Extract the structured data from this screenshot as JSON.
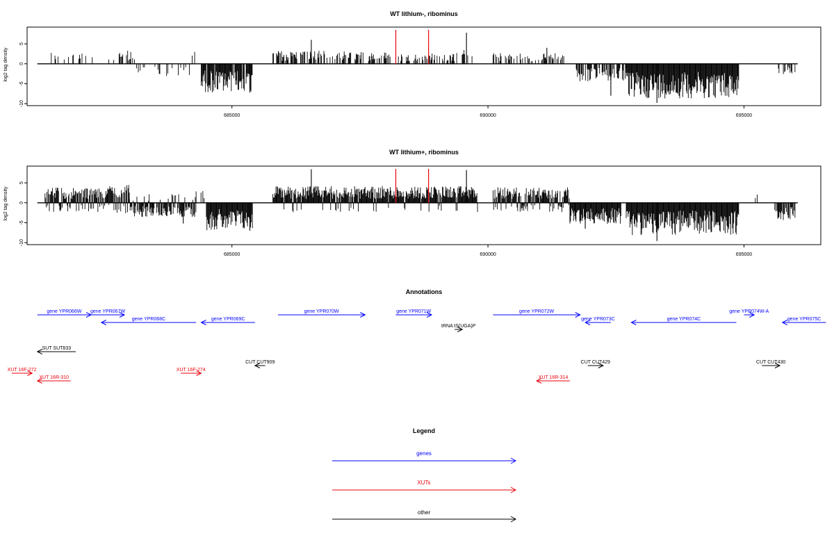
{
  "colors": {
    "axis": "#000000",
    "bar": "#000000",
    "marker": "#e8000b",
    "gene": "#0000ff",
    "xut": "#e8000b",
    "other": "#000000"
  },
  "chart_data": [
    {
      "type": "bar",
      "title": "WT lithium-, ribominus",
      "ylabel": "log2 tag density",
      "xlim": [
        681000,
        696500
      ],
      "ylim": [
        -10.5,
        9.2
      ],
      "xticks": [
        685000,
        690000,
        695000
      ],
      "yticks": [
        5,
        0,
        -5,
        -10
      ],
      "xtick_labels": [
        "685000",
        "690000",
        "695000"
      ],
      "ytick_labels": [
        "5",
        "0",
        "-5",
        "-10"
      ],
      "baseline": {
        "from": 681200,
        "to": 696050
      },
      "markers": [
        688200,
        688840
      ],
      "marker_height": 8.5,
      "segments": [
        {
          "from": 681400,
          "to": 682200,
          "mean": 2.0,
          "density": 0.25
        },
        {
          "from": 682200,
          "to": 682700,
          "mean": 1.5,
          "density": 0.06
        },
        {
          "from": 682700,
          "to": 683100,
          "mean": 2.4,
          "density": 0.45
        },
        {
          "from": 683100,
          "to": 683700,
          "mean": -1.8,
          "density": 0.3
        },
        {
          "from": 683700,
          "to": 684200,
          "mean": -2.2,
          "density": 0.22
        },
        {
          "from": 684200,
          "to": 684400,
          "mean": 2.0,
          "density": 0.12
        },
        {
          "from": 684400,
          "to": 685400,
          "mean": -4.8,
          "density": 0.9
        },
        {
          "from": 685800,
          "to": 687200,
          "mean": 2.2,
          "density": 0.55
        },
        {
          "from": 687200,
          "to": 688100,
          "mean": 2.0,
          "density": 0.5
        },
        {
          "from": 688250,
          "to": 689400,
          "mean": 1.8,
          "density": 0.4
        },
        {
          "from": 689400,
          "to": 689700,
          "mean": 2.4,
          "density": 0.35
        },
        {
          "from": 690100,
          "to": 691500,
          "mean": 1.8,
          "density": 0.45
        },
        {
          "from": 691700,
          "to": 692700,
          "mean": -3.0,
          "density": 0.65
        },
        {
          "from": 692700,
          "to": 694900,
          "mean": -5.8,
          "density": 1.0
        },
        {
          "from": 695600,
          "to": 696000,
          "mean": -1.8,
          "density": 0.3
        }
      ],
      "spikes": [
        {
          "x": 686550,
          "y": 6.0
        },
        {
          "x": 689580,
          "y": 7.8
        },
        {
          "x": 692400,
          "y": -8.0
        },
        {
          "x": 693300,
          "y": -9.8
        },
        {
          "x": 691150,
          "y": 4.0
        },
        {
          "x": 685350,
          "y": -7.2
        }
      ]
    },
    {
      "type": "bar",
      "title": "WT lithium+, ribominus",
      "ylabel": "log2 tag density",
      "xlim": [
        681000,
        696500
      ],
      "ylim": [
        -10.5,
        9.2
      ],
      "xticks": [
        685000,
        690000,
        695000
      ],
      "yticks": [
        5,
        0,
        -5,
        -10
      ],
      "xtick_labels": [
        "685000",
        "690000",
        "695000"
      ],
      "ytick_labels": [
        "5",
        "0",
        "-5",
        "-10"
      ],
      "baseline": {
        "from": 681200,
        "to": 696050
      },
      "markers": [
        688200,
        688840
      ],
      "marker_height": 8.5,
      "segments": [
        {
          "from": 681350,
          "to": 682600,
          "mean": 2.6,
          "density": 1.0,
          "mixed": 0.25
        },
        {
          "from": 682600,
          "to": 683000,
          "mean": 3.0,
          "density": 0.9,
          "mixed": 0.2
        },
        {
          "from": 683000,
          "to": 684300,
          "mean": -2.4,
          "density": 0.9,
          "mixed": 0.15
        },
        {
          "from": 684300,
          "to": 684500,
          "mean": 2.2,
          "density": 0.3
        },
        {
          "from": 684500,
          "to": 685400,
          "mean": -4.6,
          "density": 1.0
        },
        {
          "from": 685800,
          "to": 689800,
          "mean": 2.8,
          "density": 1.0,
          "mixed": 0.1
        },
        {
          "from": 690100,
          "to": 691600,
          "mean": 2.6,
          "density": 1.0,
          "mixed": 0.2
        },
        {
          "from": 691600,
          "to": 692600,
          "mean": -3.6,
          "density": 1.0
        },
        {
          "from": 692700,
          "to": 694900,
          "mean": -5.4,
          "density": 1.0
        },
        {
          "from": 695150,
          "to": 695300,
          "mean": 2.6,
          "density": 0.15
        },
        {
          "from": 695600,
          "to": 696000,
          "mean": -3.0,
          "density": 0.8
        }
      ],
      "spikes": [
        {
          "x": 686550,
          "y": 8.4
        },
        {
          "x": 689580,
          "y": 8.2
        },
        {
          "x": 691900,
          "y": -6.5
        },
        {
          "x": 693300,
          "y": -9.6
        },
        {
          "x": 685350,
          "y": -7.0
        },
        {
          "x": 684050,
          "y": -5.2
        }
      ]
    }
  ],
  "annotations": {
    "title": "Annotations",
    "xlim": [
      681000,
      696500
    ],
    "tracks": [
      {
        "label": "gene YPR066W",
        "from": 681200,
        "to": 682250,
        "strand": "+",
        "row": 0,
        "kind": "gene"
      },
      {
        "label": "gene YPR067W",
        "from": 682250,
        "to": 682900,
        "strand": "+",
        "row": 0,
        "kind": "gene"
      },
      {
        "label": "gene YPR068C",
        "from": 682450,
        "to": 684300,
        "strand": "-",
        "row": 1,
        "kind": "gene"
      },
      {
        "label": "gene YPR069C",
        "from": 684400,
        "to": 685450,
        "strand": "-",
        "row": 1,
        "kind": "gene"
      },
      {
        "label": "gene YPR070W",
        "from": 685900,
        "to": 687600,
        "strand": "+",
        "row": 0,
        "kind": "gene"
      },
      {
        "label": "gene YPR071W",
        "from": 688200,
        "to": 688900,
        "strand": "+",
        "row": 0,
        "kind": "gene"
      },
      {
        "label": "tRNA tS(UGA)P",
        "from": 689350,
        "to": 689500,
        "strand": "+",
        "row": 2,
        "kind": "other"
      },
      {
        "label": "gene YPR072W",
        "from": 690100,
        "to": 691800,
        "strand": "+",
        "row": 0,
        "kind": "gene"
      },
      {
        "label": "gene YPR073C",
        "from": 691900,
        "to": 692400,
        "strand": "-",
        "row": 1,
        "kind": "gene"
      },
      {
        "label": "gene YPR074C",
        "from": 692800,
        "to": 694850,
        "strand": "-",
        "row": 1,
        "kind": "gene"
      },
      {
        "label": "gene YPR074W-A",
        "from": 695000,
        "to": 695200,
        "strand": "+",
        "row": 0,
        "kind": "gene"
      },
      {
        "label": "gene YPR075C",
        "from": 695750,
        "to": 696600,
        "strand": "-",
        "row": 1,
        "kind": "gene"
      },
      {
        "label": "SUT SUT833",
        "from": 681200,
        "to": 681950,
        "strand": "-",
        "row": 3,
        "kind": "other"
      },
      {
        "label": "CUT CUT909",
        "from": 685450,
        "to": 685650,
        "strand": "-",
        "row": 4,
        "kind": "other"
      },
      {
        "label": "CUT CUT429",
        "from": 691950,
        "to": 692250,
        "strand": "+",
        "row": 4,
        "kind": "other"
      },
      {
        "label": "CUT CUT430",
        "from": 695350,
        "to": 695700,
        "strand": "+",
        "row": 4,
        "kind": "other"
      },
      {
        "label": "XUT 16F-272",
        "from": 680700,
        "to": 681100,
        "strand": "+",
        "row": 5,
        "kind": "xut"
      },
      {
        "label": "XUT 16F-274",
        "from": 684000,
        "to": 684400,
        "strand": "+",
        "row": 5,
        "kind": "xut"
      },
      {
        "label": "XUT 16R-310",
        "from": 681200,
        "to": 681850,
        "strand": "-",
        "row": 6,
        "kind": "xut"
      },
      {
        "label": "XUT 16R-314",
        "from": 690950,
        "to": 691600,
        "strand": "-",
        "row": 6,
        "kind": "xut"
      }
    ]
  },
  "legend": {
    "title": "Legend",
    "items": [
      {
        "label": "genes",
        "kind": "gene"
      },
      {
        "label": "XUTs",
        "kind": "xut"
      },
      {
        "label": "other",
        "kind": "other"
      }
    ]
  }
}
